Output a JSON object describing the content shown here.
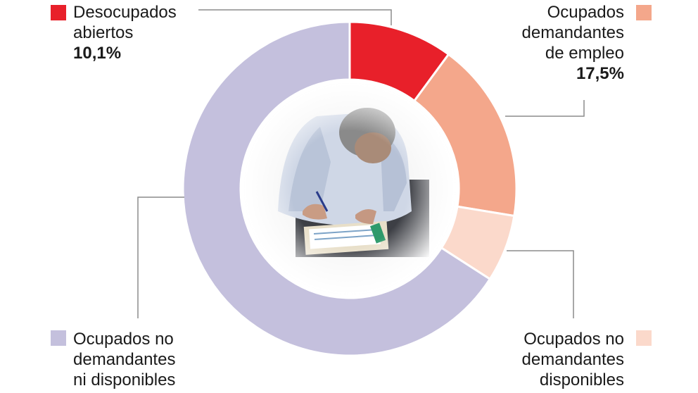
{
  "chart_data": {
    "type": "pie",
    "variant": "donut",
    "slices": [
      {
        "label_lines": [
          "Desocupados",
          "abiertos"
        ],
        "value": 10.1,
        "value_label": "10,1%",
        "color": "#e8202a"
      },
      {
        "label_lines": [
          "Ocupados",
          "demandantes",
          "de empleo"
        ],
        "value": 17.5,
        "value_label": "17,5%",
        "color": "#f4a78b"
      },
      {
        "label_lines": [
          "Ocupados no",
          "demandantes",
          "disponibles"
        ],
        "value": 6.5,
        "value_label": "",
        "color": "#fbd9cb"
      },
      {
        "label_lines": [
          "Ocupados no",
          "demandantes",
          "ni disponibles"
        ],
        "value": 65.9,
        "value_label": "",
        "color": "#c4c0dd"
      }
    ],
    "center_image": "photo-man-filling-form",
    "legend_placement": "outside-corners"
  }
}
